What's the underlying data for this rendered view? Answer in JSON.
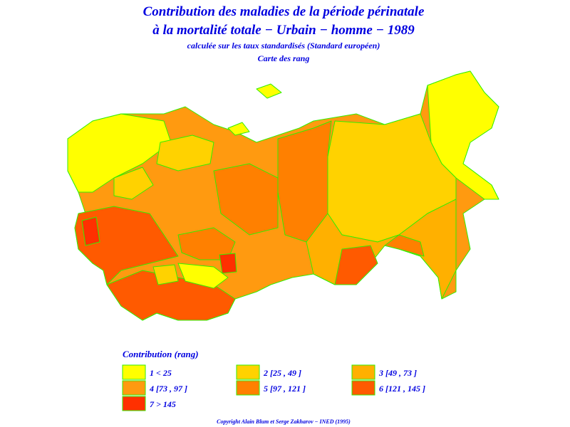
{
  "header": {
    "title_line1": "Contribution des maladies de la période périnatale",
    "title_line2": "à la mortalité totale − Urbain − homme − 1989",
    "subtitle": "calculée sur les taux standardisés (Standard européen)",
    "map_caption": "Carte des rang"
  },
  "legend": {
    "title": "Contribution (rang)",
    "items": [
      {
        "label": "1  <  25",
        "color": "#ffff00"
      },
      {
        "label": "2  [25 , 49 ]",
        "color": "#ffd200"
      },
      {
        "label": "3  [49 , 73 ]",
        "color": "#ffb000"
      },
      {
        "label": "4  [73 , 97 ]",
        "color": "#ff9a10"
      },
      {
        "label": "5  [97 , 121 ]",
        "color": "#ff8000"
      },
      {
        "label": "6  [121 , 145 ]",
        "color": "#ff5a00"
      },
      {
        "label": "7  >  145",
        "color": "#ff3000"
      }
    ]
  },
  "footer": {
    "copyright": "Copyright Alain Blum et Serge Zakharov − INED (1995)"
  }
}
